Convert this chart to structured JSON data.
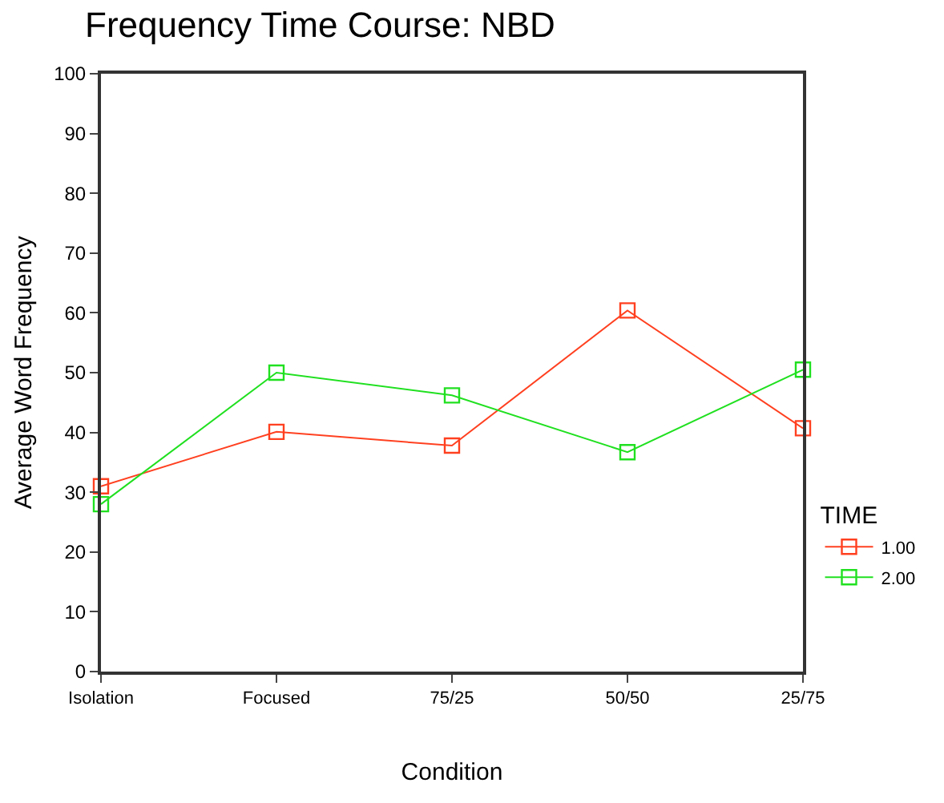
{
  "chart_data": {
    "type": "line",
    "title": "Frequency Time Course: NBD",
    "xlabel": "Condition",
    "ylabel": "Average Word Frequency",
    "legend_title": "TIME",
    "categories": [
      "Isolation",
      "Focused",
      "75/25",
      "50/50",
      "25/75"
    ],
    "series": [
      {
        "name": "1.00",
        "color": "#ff4020",
        "values": [
          31.0,
          40.1,
          37.8,
          60.4,
          40.7
        ]
      },
      {
        "name": "2.00",
        "color": "#20e020",
        "values": [
          28.0,
          50.0,
          46.2,
          36.7,
          50.5
        ]
      }
    ],
    "ylim": [
      0,
      100
    ],
    "yticks": [
      0,
      10,
      20,
      30,
      40,
      50,
      60,
      70,
      80,
      90,
      100
    ],
    "legend": "right",
    "marker": "square",
    "line_style": "solid"
  }
}
